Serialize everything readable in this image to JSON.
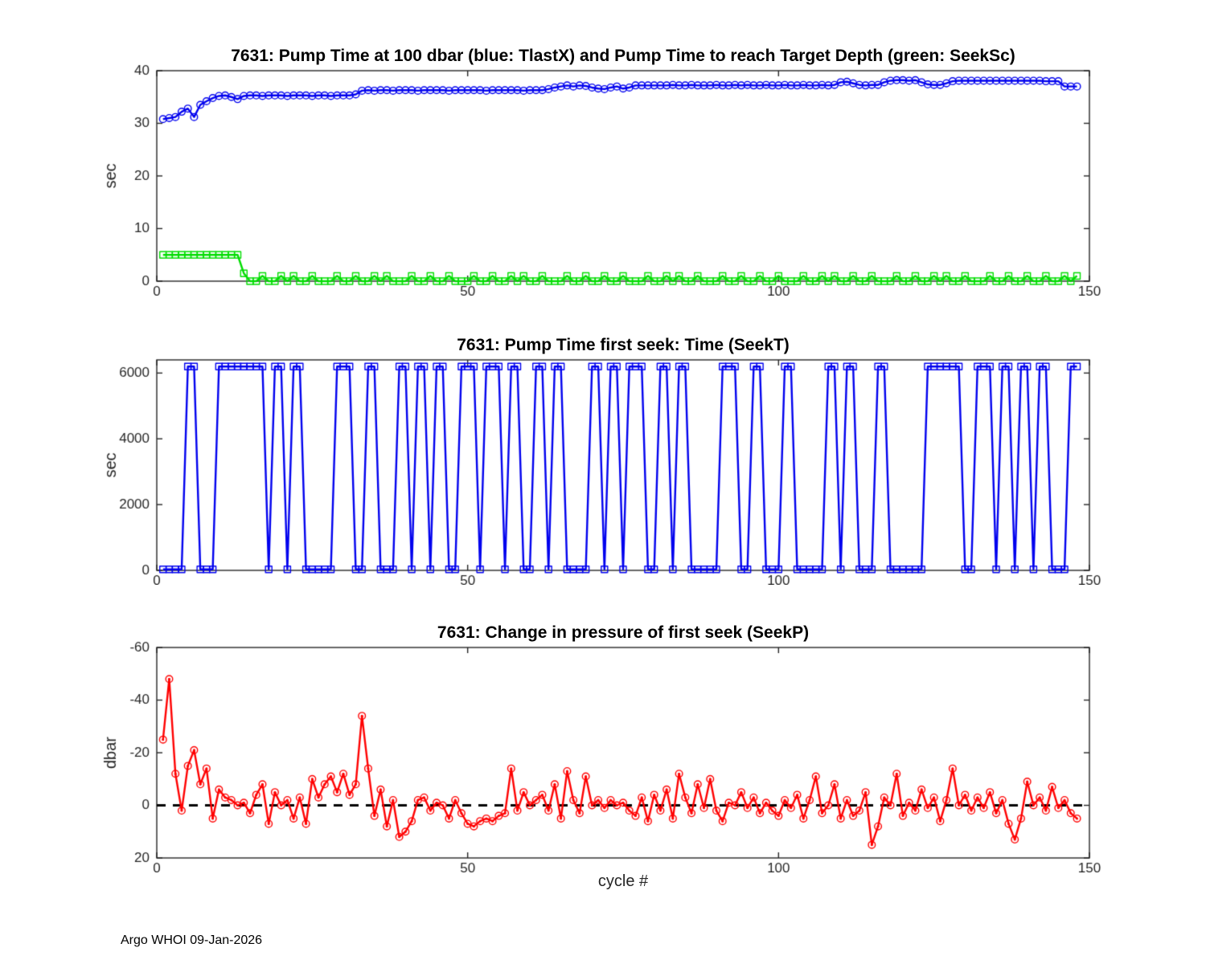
{
  "page": {
    "footer": "Argo WHOI 09-Jan-2026",
    "xlabel": "cycle #",
    "background": "#ffffff",
    "axis_color": "#262626"
  },
  "chart_data": [
    {
      "type": "line",
      "title": "7631:  Pump Time at 100 dbar (blue: TlastX) and Pump Time to reach Target Depth (green: SeekSc)",
      "ylabel": "sec",
      "xlabel": "",
      "xlim": [
        0,
        150
      ],
      "ylim": [
        0,
        40
      ],
      "xticks": [
        0,
        50,
        100,
        150
      ],
      "yticks": [
        0,
        10,
        20,
        30,
        40
      ],
      "grid": false,
      "legend_position": "none",
      "series": [
        {
          "name": "TlastX",
          "color": "#0000ee",
          "marker": "circle",
          "x_start": 1,
          "values": [
            30.8,
            31.0,
            31.2,
            32.2,
            32.8,
            31.2,
            33.5,
            34.2,
            34.8,
            35.2,
            35.3,
            35.0,
            34.6,
            35.2,
            35.3,
            35.3,
            35.2,
            35.3,
            35.3,
            35.3,
            35.2,
            35.3,
            35.3,
            35.3,
            35.2,
            35.3,
            35.3,
            35.2,
            35.3,
            35.3,
            35.3,
            35.5,
            36.2,
            36.3,
            36.2,
            36.3,
            36.3,
            36.2,
            36.3,
            36.3,
            36.3,
            36.2,
            36.3,
            36.3,
            36.3,
            36.3,
            36.2,
            36.3,
            36.3,
            36.3,
            36.3,
            36.3,
            36.2,
            36.3,
            36.3,
            36.3,
            36.3,
            36.3,
            36.2,
            36.3,
            36.3,
            36.3,
            36.5,
            36.8,
            37.0,
            37.2,
            37.0,
            37.2,
            37.1,
            36.8,
            36.6,
            36.5,
            36.8,
            37.0,
            36.6,
            36.8,
            37.2,
            37.2,
            37.2,
            37.2,
            37.2,
            37.2,
            37.3,
            37.2,
            37.2,
            37.3,
            37.2,
            37.2,
            37.2,
            37.3,
            37.2,
            37.2,
            37.3,
            37.2,
            37.3,
            37.2,
            37.2,
            37.3,
            37.2,
            37.2,
            37.3,
            37.2,
            37.2,
            37.3,
            37.2,
            37.2,
            37.3,
            37.2,
            37.3,
            37.8,
            37.9,
            37.6,
            37.3,
            37.2,
            37.3,
            37.3,
            37.8,
            38.1,
            38.2,
            38.2,
            38.1,
            38.2,
            37.8,
            37.4,
            37.3,
            37.3,
            37.6,
            38.0,
            38.1,
            38.1,
            38.1,
            38.1,
            38.1,
            38.1,
            38.1,
            38.1,
            38.1,
            38.1,
            38.1,
            38.1,
            38.1,
            38.1,
            38.0,
            38.0,
            38.0,
            37.0,
            37.0,
            37.0
          ]
        },
        {
          "name": "SeekSc",
          "color": "#00dd00",
          "marker": "square",
          "x_start": 1,
          "values": [
            5,
            5,
            5,
            5,
            5,
            5,
            5,
            5,
            5,
            5,
            5,
            5,
            5,
            1.5,
            0,
            0,
            1,
            0,
            0,
            1,
            0,
            1,
            0,
            0,
            1,
            0,
            0,
            0,
            1,
            0,
            0,
            1,
            0,
            0,
            1,
            0,
            1,
            0,
            0,
            0,
            1,
            0,
            0,
            1,
            0,
            0,
            1,
            0,
            0,
            0,
            1,
            0,
            0,
            1,
            0,
            0,
            1,
            0,
            1,
            0,
            0,
            1,
            0,
            0,
            0,
            1,
            0,
            0,
            1,
            0,
            0,
            1,
            0,
            0,
            1,
            0,
            0,
            0,
            1,
            0,
            0,
            1,
            0,
            1,
            0,
            0,
            1,
            0,
            0,
            0,
            1,
            0,
            0,
            1,
            0,
            0,
            1,
            0,
            0,
            1,
            0,
            0,
            0,
            1,
            0,
            0,
            1,
            0,
            1,
            0,
            0,
            1,
            0,
            0,
            1,
            0,
            0,
            0,
            1,
            0,
            0,
            1,
            0,
            0,
            1,
            0,
            1,
            0,
            0,
            1,
            0,
            0,
            0,
            1,
            0,
            0,
            1,
            0,
            0,
            1,
            0,
            0,
            1,
            0,
            0,
            1,
            0,
            1
          ]
        }
      ]
    },
    {
      "type": "line",
      "title": "7631: Pump Time first seek: Time (SeekT)",
      "ylabel": "sec",
      "xlabel": "",
      "xlim": [
        0,
        150
      ],
      "ylim": [
        0,
        6400
      ],
      "xticks": [
        0,
        50,
        100,
        150
      ],
      "yticks": [
        0,
        2000,
        4000,
        6000
      ],
      "grid": false,
      "legend_position": "none",
      "series": [
        {
          "name": "SeekT",
          "color": "#0000ee",
          "marker": "square",
          "x_start": 1,
          "values": [
            30,
            30,
            30,
            30,
            6200,
            6200,
            30,
            30,
            30,
            6200,
            6200,
            6200,
            6200,
            6200,
            6200,
            6200,
            6200,
            30,
            6200,
            6200,
            30,
            6200,
            6200,
            30,
            30,
            30,
            30,
            30,
            6200,
            6200,
            6200,
            30,
            30,
            6200,
            6200,
            30,
            30,
            30,
            6200,
            6200,
            30,
            6200,
            6200,
            30,
            6200,
            6200,
            30,
            30,
            6200,
            6200,
            6200,
            30,
            6200,
            6200,
            6200,
            30,
            6200,
            6200,
            30,
            30,
            6200,
            6200,
            30,
            6200,
            6200,
            30,
            30,
            30,
            30,
            6200,
            6200,
            30,
            6200,
            6200,
            30,
            6200,
            6200,
            6200,
            30,
            30,
            6200,
            6200,
            30,
            6200,
            6200,
            30,
            30,
            30,
            30,
            30,
            6200,
            6200,
            6200,
            30,
            30,
            6200,
            6200,
            30,
            30,
            30,
            6200,
            6200,
            30,
            30,
            30,
            30,
            30,
            6200,
            6200,
            30,
            6200,
            6200,
            30,
            30,
            30,
            6200,
            6200,
            30,
            30,
            30,
            30,
            30,
            30,
            6200,
            6200,
            6200,
            6200,
            6200,
            6200,
            30,
            30,
            6200,
            6200,
            6200,
            30,
            6200,
            6200,
            30,
            6200,
            6200,
            30,
            6200,
            6200,
            30,
            30,
            30,
            6200,
            6200
          ]
        }
      ]
    },
    {
      "type": "line",
      "title": "7631: Change in pressure of first seek (SeekP)",
      "ylabel": "dbar",
      "xlabel": "cycle #",
      "xlim": [
        0,
        150
      ],
      "ylim": [
        -60,
        20
      ],
      "y_reversed": true,
      "xticks": [
        0,
        50,
        100,
        150
      ],
      "yticks": [
        -60,
        -40,
        -20,
        0,
        20
      ],
      "grid": false,
      "zero_line": "dashed",
      "legend_position": "none",
      "series": [
        {
          "name": "SeekP",
          "color": "#ff0000",
          "marker": "circle-dot",
          "x_start": 1,
          "values": [
            -25,
            -48,
            -12,
            2,
            -15,
            -21,
            -8,
            -14,
            5,
            -6,
            -3,
            -2,
            0,
            -1,
            3,
            -4,
            -8,
            7,
            -5,
            0,
            -2,
            5,
            -3,
            7,
            -10,
            -3,
            -8,
            -11,
            -5,
            -12,
            -4,
            -8,
            -34,
            -14,
            4,
            -6,
            8,
            -2,
            12,
            10,
            6,
            -2,
            -3,
            2,
            -1,
            0,
            5,
            -2,
            3,
            7,
            8,
            6,
            5,
            6,
            4,
            3,
            -14,
            2,
            -5,
            0,
            -2,
            -4,
            2,
            -8,
            5,
            -13,
            -2,
            3,
            -11,
            0,
            -2,
            1,
            -2,
            0,
            -1,
            2,
            4,
            -3,
            6,
            -4,
            2,
            -6,
            5,
            -12,
            -3,
            3,
            -8,
            1,
            -10,
            2,
            6,
            -1,
            0,
            -5,
            1,
            -3,
            3,
            -1,
            2,
            4,
            -2,
            1,
            -4,
            5,
            -2,
            -11,
            3,
            0,
            -8,
            5,
            -2,
            4,
            2,
            -5,
            15,
            8,
            -3,
            0,
            -12,
            4,
            -1,
            2,
            -6,
            1,
            -3,
            6,
            -2,
            -14,
            0,
            -4,
            2,
            -3,
            1,
            -5,
            3,
            -2,
            7,
            13,
            5,
            -9,
            0,
            -3,
            2,
            -7,
            1,
            -2,
            3,
            5
          ]
        }
      ]
    }
  ]
}
